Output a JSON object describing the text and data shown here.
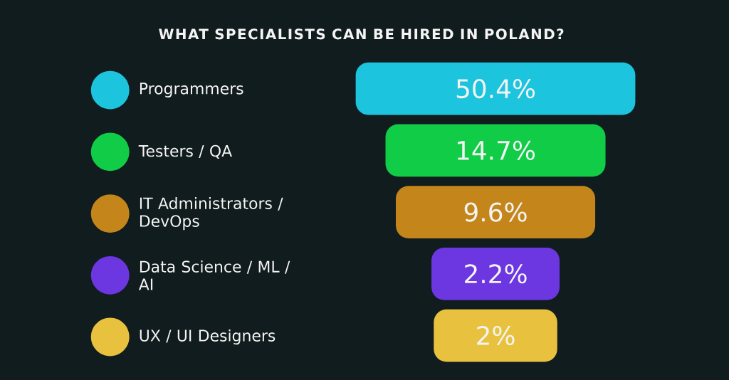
{
  "chart_data": {
    "type": "other",
    "title": "WHAT SPECIALISTS CAN BE HIRED IN POLAND?",
    "categories": [
      "Programmers",
      "Testers / QA",
      "IT Administrators / DevOps",
      "Data Science / ML / AI",
      "UX / UI Designers"
    ],
    "values": [
      50.4,
      14.7,
      9.6,
      2.2,
      2
    ],
    "value_labels": [
      "50.4%",
      "14.7%",
      "9.6%",
      "2.2%",
      "2%"
    ],
    "colors": [
      "#1cc4de",
      "#10cc46",
      "#c4861a",
      "#6c36e0",
      "#e8c23e"
    ]
  }
}
